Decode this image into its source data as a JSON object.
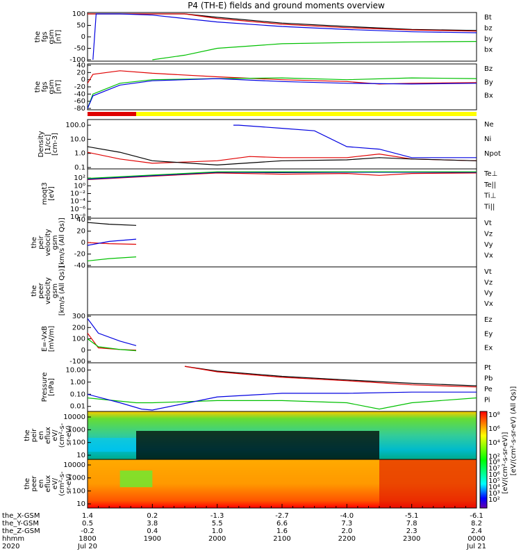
{
  "title": "P4 (TH-E) fields and ground moments overview",
  "colors": {
    "black": "#000000",
    "red": "#e00000",
    "green": "#00c000",
    "blue": "#0000e0",
    "yellow": "#ffff00",
    "panel_bg": "#ffffff"
  },
  "chart_data": [
    {
      "type": "line",
      "panel": "fgs_gsm",
      "ylabel_lines": [
        "the",
        "fgs",
        "gsm",
        "[nT]"
      ],
      "ylim": [
        -100,
        100
      ],
      "yticks": [
        "100",
        "50",
        "0",
        "-50",
        "-100"
      ],
      "ytick_vals": [
        100,
        50,
        0,
        -50,
        -100
      ],
      "series": [
        {
          "name": "Bt",
          "color": "#000000",
          "x": [
            1800,
            1930,
            2000,
            2100,
            2200,
            2300,
            2400
          ],
          "y": [
            100,
            100,
            85,
            60,
            45,
            32,
            28
          ]
        },
        {
          "name": "bz",
          "color": "#e00000",
          "x": [
            1800,
            1930,
            2000,
            2100,
            2200,
            2300,
            2400
          ],
          "y": [
            100,
            100,
            80,
            55,
            40,
            30,
            25
          ]
        },
        {
          "name": "by",
          "color": "#00c000",
          "x": [
            1900,
            1930,
            2000,
            2100,
            2200,
            2300,
            2400
          ],
          "y": [
            -100,
            -80,
            -50,
            -30,
            -25,
            -22,
            -20
          ]
        },
        {
          "name": "bx",
          "color": "#0000e0",
          "x": [
            1805,
            1808,
            1830,
            1900,
            2000,
            2100,
            2200,
            2300,
            2400
          ],
          "y": [
            -100,
            100,
            100,
            95,
            65,
            45,
            32,
            22,
            18
          ]
        }
      ]
    },
    {
      "type": "line",
      "panel": "fgs_gsm_bar",
      "ylabel_lines": [
        "the",
        "fgs",
        "gsm",
        "[nT]"
      ],
      "ylim": [
        -80,
        40
      ],
      "yticks": [
        "40",
        "20",
        "0",
        "-20",
        "-40",
        "-60",
        "-80"
      ],
      "ytick_vals": [
        40,
        20,
        0,
        -20,
        -40,
        -60,
        -80
      ],
      "series": [
        {
          "name": "Bz",
          "color": "#e00000",
          "x": [
            1800,
            1805,
            1830,
            1900,
            2000,
            2100,
            2200,
            2230,
            2300,
            2400
          ],
          "y": [
            -10,
            15,
            25,
            18,
            8,
            0,
            -5,
            -12,
            -10,
            -8
          ]
        },
        {
          "name": "By",
          "color": "#00c000",
          "x": [
            1800,
            1805,
            1830,
            1900,
            2000,
            2100,
            2200,
            2300,
            2400
          ],
          "y": [
            -80,
            -40,
            -10,
            0,
            3,
            5,
            0,
            5,
            3
          ]
        },
        {
          "name": "Bx",
          "color": "#0000e0",
          "x": [
            1800,
            1805,
            1830,
            1900,
            2000,
            2100,
            2200,
            2300,
            2400
          ],
          "y": [
            -80,
            -45,
            -15,
            -3,
            3,
            -5,
            -10,
            -12,
            -10
          ]
        }
      ]
    },
    {
      "type": "line",
      "panel": "density",
      "log": true,
      "ylabel_lines": [
        "Density",
        "[1/cc]",
        "[cm-3]"
      ],
      "ylim": [
        0.1,
        200
      ],
      "yticks": [
        "100.0",
        "10.0",
        "1.0",
        "0.1"
      ],
      "ytick_vals": [
        100,
        10,
        1,
        0.1
      ],
      "series": [
        {
          "name": "Ne",
          "color": "#e00000",
          "x": [
            1800,
            1830,
            1900,
            2000,
            2030,
            2100,
            2200,
            2230,
            2300,
            2400
          ],
          "y": [
            1.2,
            0.4,
            0.2,
            0.3,
            0.6,
            0.5,
            0.5,
            0.9,
            0.4,
            0.3
          ]
        },
        {
          "name": "Ni",
          "color": "#000000",
          "x": [
            1800,
            1830,
            1900,
            2000,
            2100,
            2200,
            2230,
            2300,
            2400
          ],
          "y": [
            3,
            1.2,
            0.3,
            0.15,
            0.3,
            0.35,
            0.5,
            0.4,
            0.3
          ]
        },
        {
          "name": "Npot",
          "color": "#0000e0",
          "x": [
            2015,
            2020,
            2100,
            2130,
            2200,
            2230,
            2300,
            2400
          ],
          "y": [
            100,
            100,
            60,
            40,
            3,
            2,
            0.5,
            0.5
          ]
        }
      ]
    },
    {
      "type": "line",
      "panel": "temperature",
      "log": true,
      "ylabel_lines": [
        "moqt3",
        "[eV]"
      ],
      "ylim": [
        1e-08,
        10000.0
      ],
      "yticks": [
        "10²",
        "10⁰",
        "10⁻²",
        "10⁻⁴",
        "10⁻⁶",
        "10⁻⁸"
      ],
      "ytick_vals": [
        100,
        1,
        0.01,
        0.0001,
        1e-06,
        1e-08
      ],
      "series": [
        {
          "name": "Te⊥",
          "color": "#e00000",
          "x": [
            1800,
            1900,
            2000,
            2100,
            2200,
            2230,
            2300,
            2400
          ],
          "y": [
            40,
            300,
            2000,
            1000,
            1500,
            500,
            1500,
            2000
          ]
        },
        {
          "name": "Te||",
          "color": "#000000",
          "x": [
            1800,
            1900,
            2000,
            2100,
            2200,
            2300,
            2400
          ],
          "y": [
            60,
            500,
            3000,
            2500,
            3000,
            3000,
            3000
          ]
        },
        {
          "name": "Ti⊥",
          "color": "#0000e0",
          "x": [
            1800,
            1900,
            2000,
            2100,
            2200,
            2300,
            2400
          ],
          "y": [
            50,
            400,
            3000,
            3000,
            3000,
            3000,
            3000
          ]
        },
        {
          "name": "Ti||",
          "color": "#00c000",
          "x": [
            1800,
            1900,
            2000,
            2100,
            2200,
            2300,
            2400
          ],
          "y": [
            80,
            600,
            4000,
            4000,
            4000,
            4000,
            4000
          ]
        }
      ]
    },
    {
      "type": "line",
      "panel": "peir_velocity",
      "ylabel_lines": [
        "the",
        "peir",
        "velocity",
        "gsm",
        "[km/s (All Qs)]"
      ],
      "ylim": [
        -40,
        40
      ],
      "yticks": [
        "40",
        "20",
        "0",
        "-20",
        "-40"
      ],
      "ytick_vals": [
        40,
        20,
        0,
        -20,
        -40
      ],
      "series": [
        {
          "name": "Vt",
          "color": "#000000",
          "x": [
            1800,
            1820,
            1845
          ],
          "y": [
            35,
            32,
            30
          ]
        },
        {
          "name": "Vz",
          "color": "#e00000",
          "x": [
            1800,
            1820,
            1845
          ],
          "y": [
            0,
            -2,
            -3
          ]
        },
        {
          "name": "Vy",
          "color": "#00c000",
          "x": [
            1800,
            1820,
            1845
          ],
          "y": [
            -32,
            -28,
            -25
          ]
        },
        {
          "name": "Vx",
          "color": "#0000e0",
          "x": [
            1800,
            1820,
            1845
          ],
          "y": [
            -5,
            2,
            6
          ]
        }
      ]
    },
    {
      "type": "line",
      "panel": "peer_velocity",
      "ylabel_lines": [
        "the",
        "peer",
        "velocity",
        "gsm",
        "[km/s (All Qs)]"
      ],
      "ylim": [
        -40,
        40
      ],
      "yticks": [],
      "ytick_vals": [],
      "series": [
        {
          "name": "Vt",
          "color": "#000000",
          "x": [],
          "y": []
        },
        {
          "name": "Vz",
          "color": "#e00000",
          "x": [],
          "y": []
        },
        {
          "name": "Vy",
          "color": "#00c000",
          "x": [],
          "y": []
        },
        {
          "name": "Vx",
          "color": "#0000e0",
          "x": [],
          "y": []
        }
      ]
    },
    {
      "type": "line",
      "panel": "efield",
      "ylabel_lines": [
        "E=-VxB",
        "[mV/m]"
      ],
      "ylim": [
        -100,
        300
      ],
      "yticks": [
        "300",
        "200",
        "100",
        "0",
        "-100"
      ],
      "ytick_vals": [
        300,
        200,
        100,
        0,
        -100
      ],
      "series": [
        {
          "name": "Ez",
          "color": "#e00000",
          "x": [
            1800,
            1810,
            1830,
            1845
          ],
          "y": [
            150,
            20,
            5,
            0
          ]
        },
        {
          "name": "Ey",
          "color": "#00c000",
          "x": [
            1800,
            1810,
            1830,
            1845
          ],
          "y": [
            100,
            30,
            5,
            -5
          ]
        },
        {
          "name": "Ex",
          "color": "#0000e0",
          "x": [
            1800,
            1810,
            1830,
            1845
          ],
          "y": [
            280,
            150,
            80,
            40
          ]
        }
      ]
    },
    {
      "type": "line",
      "panel": "pressure",
      "log": true,
      "ylabel_lines": [
        "Pressure",
        "[nPa]"
      ],
      "ylim": [
        0.005,
        30
      ],
      "yticks": [
        "10.00",
        "1.00",
        "0.10",
        "0.01"
      ],
      "ytick_vals": [
        10,
        1,
        0.1,
        0.01
      ],
      "series": [
        {
          "name": "Pt",
          "color": "#000000",
          "x": [
            1930,
            2000,
            2100,
            2200,
            2300,
            2400
          ],
          "y": [
            20,
            8,
            3,
            1.5,
            0.8,
            0.5
          ]
        },
        {
          "name": "Pb",
          "color": "#e00000",
          "x": [
            1930,
            2000,
            2100,
            2200,
            2300,
            2400
          ],
          "y": [
            20,
            7,
            2.5,
            1.3,
            0.6,
            0.4
          ]
        },
        {
          "name": "Pe",
          "color": "#00c000",
          "x": [
            1800,
            1845,
            1900,
            2000,
            2100,
            2200,
            2230,
            2300,
            2400
          ],
          "y": [
            0.05,
            0.02,
            0.02,
            0.03,
            0.03,
            0.02,
            0.006,
            0.02,
            0.05
          ]
        },
        {
          "name": "Pi",
          "color": "#0000e0",
          "x": [
            1800,
            1830,
            1850,
            1900,
            2000,
            2100,
            2200,
            2300,
            2400
          ],
          "y": [
            0.1,
            0.02,
            0.006,
            0.004,
            0.06,
            0.12,
            0.12,
            0.15,
            0.15
          ]
        }
      ]
    },
    {
      "type": "heatmap",
      "panel": "peir_en_eflux",
      "ylabel_lines": [
        "the",
        "peir",
        "en",
        "eflux",
        "eV/",
        "(cm²-s-",
        "sr-eV)"
      ],
      "yticks": [
        "10000",
        "1000",
        "100",
        "10"
      ]
    },
    {
      "type": "heatmap",
      "panel": "peer_en_eflux",
      "ylabel_lines": [
        "the",
        "peer",
        "en",
        "eflux",
        "eV/",
        "(cm²-s-",
        "sr-eV)"
      ],
      "yticks": [
        "10000",
        "1000",
        "100",
        "10"
      ]
    }
  ],
  "legends": [
    [
      "Bt",
      "bz",
      "by",
      "bx"
    ],
    [
      "Bz",
      "By",
      "Bx"
    ],
    [
      "Ne",
      "Ni",
      "Npot"
    ],
    [
      "Te⊥",
      "Te||",
      "Ti⊥",
      "Ti||"
    ],
    [
      "Vt",
      "Vz",
      "Vy",
      "Vx"
    ],
    [
      "Vt",
      "Vz",
      "Vy",
      "Vx"
    ],
    [
      "Ez",
      "Ey",
      "Ex"
    ],
    [
      "Pt",
      "Pb",
      "Pe",
      "Pi"
    ]
  ],
  "colorbar": {
    "label": "[eV/(cm²-s-sr-eV)]",
    "label2": "[eV/(cm²-s-sr-eV) (All Qs)]",
    "ticks_top": [
      "10⁸",
      "10⁶",
      "10⁴",
      "10²"
    ],
    "ticks_bottom": [
      "10⁸",
      "10⁷",
      "10⁶",
      "10⁵",
      "10⁴",
      "10³",
      "10²"
    ]
  },
  "x_axis": {
    "rows": [
      {
        "label": "the_X-GSM",
        "values": [
          "1.4",
          "0.2",
          "-1.3",
          "-2.7",
          "-4.0",
          "-5.1",
          "-6.1"
        ]
      },
      {
        "label": "the_Y-GSM",
        "values": [
          "0.5",
          "3.8",
          "5.5",
          "6.6",
          "7.3",
          "7.8",
          "8.2"
        ]
      },
      {
        "label": "the_Z-GSM",
        "values": [
          "-0.2",
          "0.4",
          "1.0",
          "1.6",
          "2.0",
          "2.3",
          "2.4"
        ]
      },
      {
        "label": "hhmm",
        "values": [
          "1800",
          "1900",
          "2000",
          "2100",
          "2200",
          "2300",
          "0000"
        ]
      },
      {
        "label": "2020",
        "values": [
          "Jul 20",
          "",
          "",
          "",
          "",
          "",
          "Jul 21"
        ]
      }
    ]
  }
}
